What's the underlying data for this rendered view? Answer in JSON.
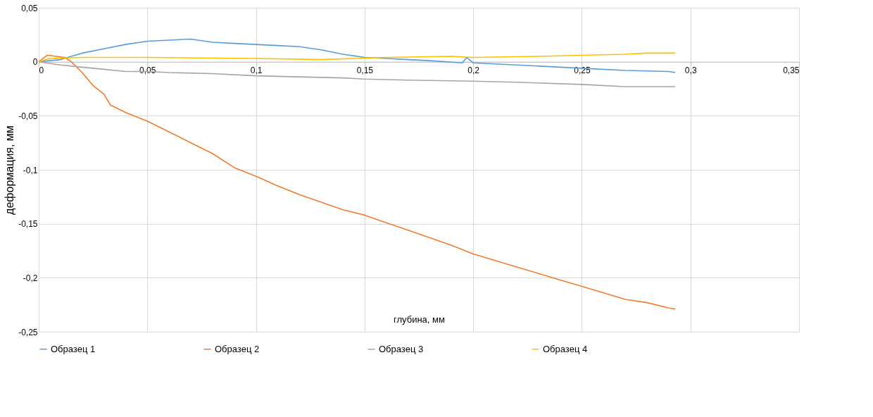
{
  "chart_data": {
    "type": "line",
    "xlabel": "глубина, мм",
    "ylabel": "деформация, мм",
    "xlim": [
      0,
      0.35
    ],
    "ylim": [
      -0.25,
      0.05
    ],
    "xticks": [
      0,
      {
        "value": 0.05,
        "label": "0,05"
      },
      {
        "value": 0.1,
        "label": "0,1"
      },
      {
        "value": 0.15,
        "label": "0,15"
      },
      {
        "value": 0.2,
        "label": "0,2"
      },
      {
        "value": 0.25,
        "label": "0,25"
      },
      {
        "value": 0.3,
        "label": "0,3"
      },
      {
        "value": 0.35,
        "label": "0,35"
      }
    ],
    "yticks": [
      {
        "value": -0.25,
        "label": "-0,25"
      },
      {
        "value": -0.2,
        "label": "-0,2"
      },
      {
        "value": -0.15,
        "label": "-0,15"
      },
      {
        "value": -0.1,
        "label": "-0,1"
      },
      {
        "value": -0.05,
        "label": "-0,05"
      },
      0,
      {
        "value": 0.05,
        "label": "0,05"
      }
    ],
    "grid": true,
    "legend": "bottom",
    "marker": "none",
    "line_style": "solid",
    "series": [
      {
        "name": "Образец 1",
        "color": "#5b9bd5",
        "x": [
          0,
          0.01,
          0.02,
          0.03,
          0.04,
          0.05,
          0.06,
          0.07,
          0.08,
          0.09,
          0.1,
          0.11,
          0.12,
          0.13,
          0.14,
          0.15,
          0.16,
          0.17,
          0.18,
          0.195,
          0.197,
          0.2,
          0.22,
          0.24,
          0.25,
          0.27,
          0.29,
          0.293
        ],
        "values": [
          0,
          0.002,
          0.008,
          0.012,
          0.016,
          0.019,
          0.02,
          0.021,
          0.018,
          0.017,
          0.016,
          0.015,
          0.014,
          0.011,
          0.007,
          0.004,
          0.003,
          0.002,
          0.001,
          -0.001,
          0.004,
          -0.001,
          -0.003,
          -0.005,
          -0.006,
          -0.008,
          -0.009,
          -0.01
        ]
      },
      {
        "name": "Образец 2",
        "color": "#ed7d31",
        "x": [
          0,
          0.004,
          0.008,
          0.012,
          0.015,
          0.02,
          0.025,
          0.03,
          0.033,
          0.04,
          0.05,
          0.06,
          0.07,
          0.08,
          0.09,
          0.1,
          0.11,
          0.12,
          0.13,
          0.14,
          0.15,
          0.16,
          0.17,
          0.18,
          0.19,
          0.2,
          0.21,
          0.22,
          0.23,
          0.24,
          0.25,
          0.26,
          0.27,
          0.28,
          0.29,
          0.293
        ],
        "values": [
          0,
          0.006,
          0.005,
          0.004,
          0,
          -0.01,
          -0.022,
          -0.03,
          -0.04,
          -0.047,
          -0.055,
          -0.065,
          -0.075,
          -0.085,
          -0.098,
          -0.106,
          -0.115,
          -0.123,
          -0.13,
          -0.137,
          -0.142,
          -0.149,
          -0.156,
          -0.163,
          -0.17,
          -0.178,
          -0.184,
          -0.19,
          -0.196,
          -0.202,
          -0.208,
          -0.214,
          -0.22,
          -0.223,
          -0.228,
          -0.229
        ]
      },
      {
        "name": "Образец 3",
        "color": "#a5a5a5",
        "x": [
          0,
          0.01,
          0.02,
          0.03,
          0.04,
          0.05,
          0.06,
          0.08,
          0.1,
          0.12,
          0.14,
          0.15,
          0.17,
          0.2,
          0.22,
          0.25,
          0.27,
          0.293
        ],
        "values": [
          0,
          -0.003,
          -0.005,
          -0.007,
          -0.009,
          -0.009,
          -0.01,
          -0.011,
          -0.013,
          -0.014,
          -0.015,
          -0.016,
          -0.017,
          -0.018,
          -0.019,
          -0.021,
          -0.023,
          -0.023
        ]
      },
      {
        "name": "Образец 4",
        "color": "#ffc000",
        "x": [
          0,
          0.005,
          0.02,
          0.05,
          0.1,
          0.13,
          0.16,
          0.19,
          0.2,
          0.23,
          0.25,
          0.27,
          0.28,
          0.293
        ],
        "values": [
          0,
          0.003,
          0.004,
          0.004,
          0.003,
          0.002,
          0.004,
          0.005,
          0.004,
          0.005,
          0.006,
          0.007,
          0.008,
          0.008
        ]
      }
    ]
  }
}
